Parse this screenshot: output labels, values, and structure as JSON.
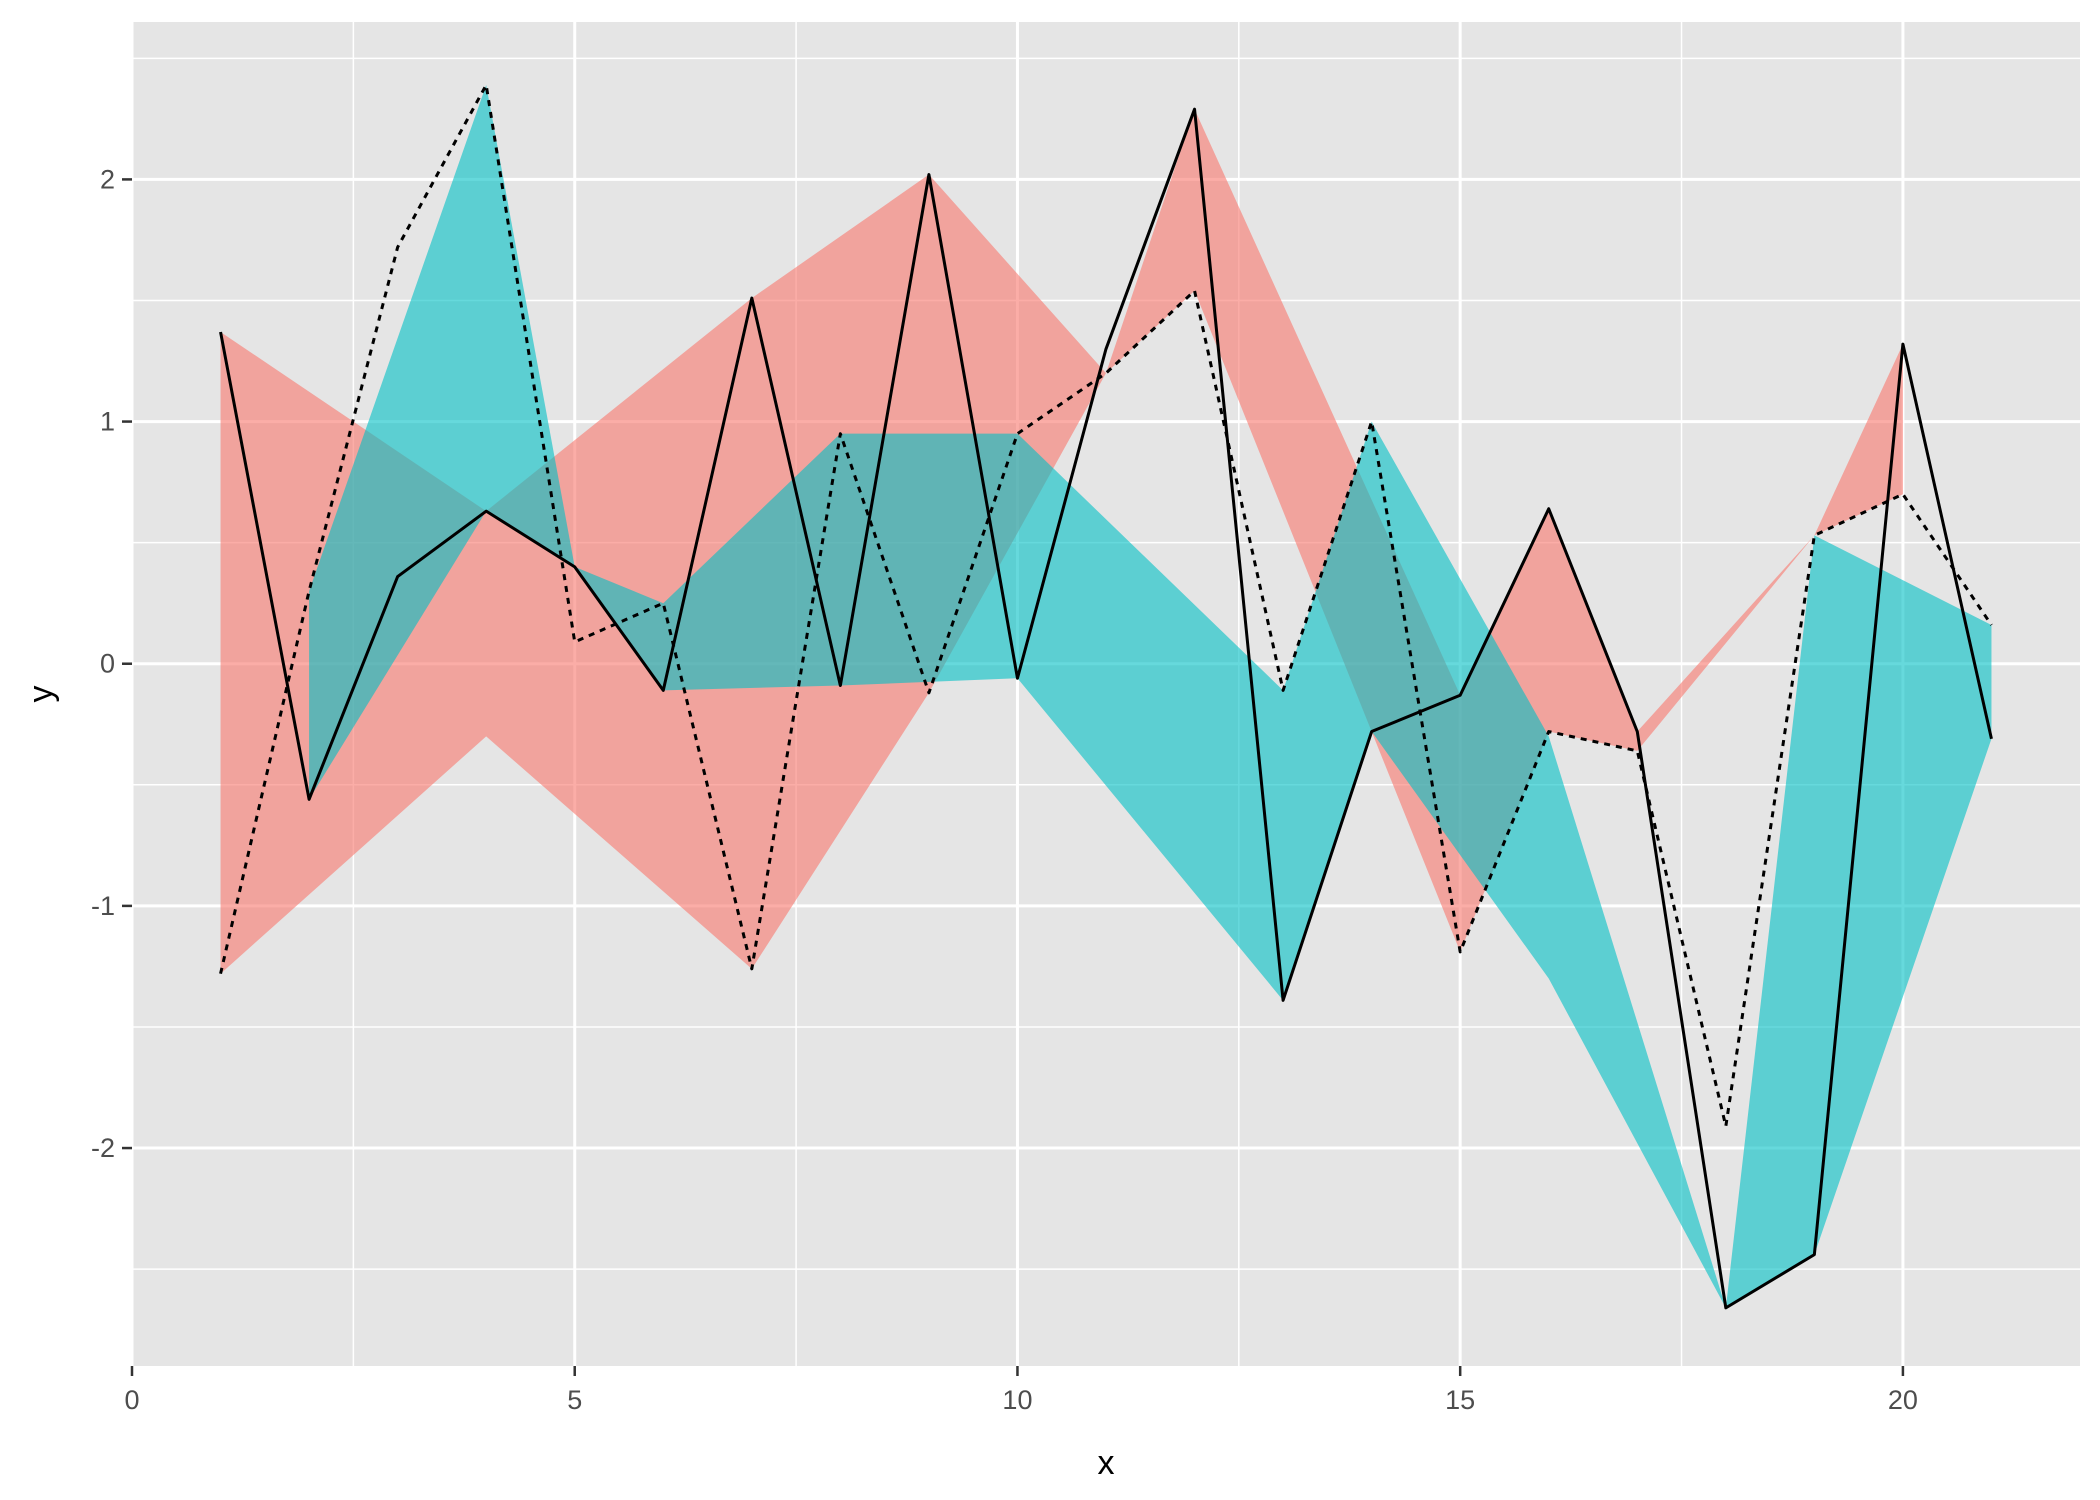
{
  "chart_data": {
    "type": "area",
    "xlabel": "x",
    "ylabel": "y",
    "xlim": [
      0,
      22
    ],
    "ylim": [
      -2.9,
      2.65
    ],
    "x_ticks": [
      0,
      5,
      10,
      15,
      20
    ],
    "y_ticks": [
      -2,
      -1,
      0,
      1,
      2
    ],
    "grid": true,
    "legend": "none",
    "colors": {
      "panel": "#e5e5e5",
      "grid": "#ffffff",
      "red_ribbon": "#f8766d",
      "teal_ribbon": "#00bfc4",
      "line": "#000000",
      "tick_text": "#4d4d4d"
    },
    "x": [
      1,
      2,
      3,
      4,
      5,
      6,
      7,
      8,
      9,
      10,
      11,
      12,
      13,
      14,
      15,
      16,
      17,
      18,
      19,
      20,
      21
    ],
    "series": [
      {
        "values": [
          1.37,
          -0.56,
          0.36,
          0.63,
          0.4,
          -0.11,
          1.51,
          -0.09,
          2.02,
          -0.06,
          1.3,
          2.29,
          -1.39,
          -0.28,
          -0.13,
          0.64,
          -0.28,
          -2.66,
          -2.44,
          1.32,
          -0.31
        ],
        "line_style": "solid"
      },
      {
        "values": [
          -1.28,
          0.3,
          1.72,
          2.39,
          0.09,
          0.25,
          -1.26,
          0.95,
          -0.12,
          0.95,
          1.2,
          1.54,
          -0.11,
          1.0,
          -1.19,
          -0.28,
          -0.36,
          -1.91,
          0.53,
          0.7,
          0.16
        ],
        "line_style": "dashed"
      }
    ],
    "ribbons": [
      {
        "color": "red",
        "x": [
          1,
          4,
          7,
          9,
          11,
          12,
          15,
          16,
          17,
          19,
          20
        ],
        "upper": [
          1.37,
          0.63,
          1.51,
          2.02,
          1.2,
          2.29,
          -0.13,
          0.64,
          -0.28,
          0.53,
          1.32
        ],
        "lower": [
          -1.28,
          -0.3,
          -1.26,
          -0.12,
          1.2,
          1.54,
          -1.19,
          -0.28,
          -0.36,
          0.53,
          0.7
        ]
      },
      {
        "color": "teal",
        "x": [
          2,
          4,
          5,
          6,
          8,
          10,
          13,
          14,
          16,
          18,
          19,
          21
        ],
        "upper": [
          0.3,
          2.39,
          0.4,
          0.25,
          0.95,
          0.95,
          -0.11,
          1.0,
          -0.3,
          -2.66,
          0.53,
          0.16
        ],
        "lower": [
          -0.56,
          0.63,
          0.4,
          -0.11,
          -0.09,
          -0.06,
          -1.39,
          -0.28,
          -1.3,
          -2.66,
          -2.44,
          -0.31
        ]
      }
    ]
  }
}
